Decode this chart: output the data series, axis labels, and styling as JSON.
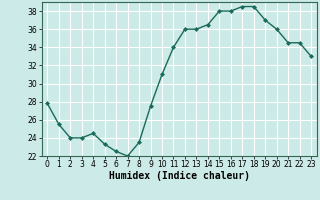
{
  "x": [
    0,
    1,
    2,
    3,
    4,
    5,
    6,
    7,
    8,
    9,
    10,
    11,
    12,
    13,
    14,
    15,
    16,
    17,
    18,
    19,
    20,
    21,
    22,
    23
  ],
  "y": [
    27.8,
    25.5,
    24.0,
    24.0,
    24.5,
    23.3,
    22.5,
    22.0,
    23.5,
    27.5,
    31.0,
    34.0,
    36.0,
    36.0,
    36.5,
    38.0,
    38.0,
    38.5,
    38.5,
    37.0,
    36.0,
    34.5,
    34.5,
    33.0
  ],
  "line_color": "#1a6b5a",
  "marker": "D",
  "marker_size": 2,
  "bg_color": "#cceae7",
  "grid_color": "#ffffff",
  "xlabel": "Humidex (Indice chaleur)",
  "ylim": [
    22,
    39
  ],
  "yticks": [
    22,
    24,
    26,
    28,
    30,
    32,
    34,
    36,
    38
  ],
  "xticks": [
    0,
    1,
    2,
    3,
    4,
    5,
    6,
    7,
    8,
    9,
    10,
    11,
    12,
    13,
    14,
    15,
    16,
    17,
    18,
    19,
    20,
    21,
    22,
    23
  ],
  "tick_fontsize": 5.5,
  "xlabel_fontsize": 7,
  "line_width": 1.0
}
